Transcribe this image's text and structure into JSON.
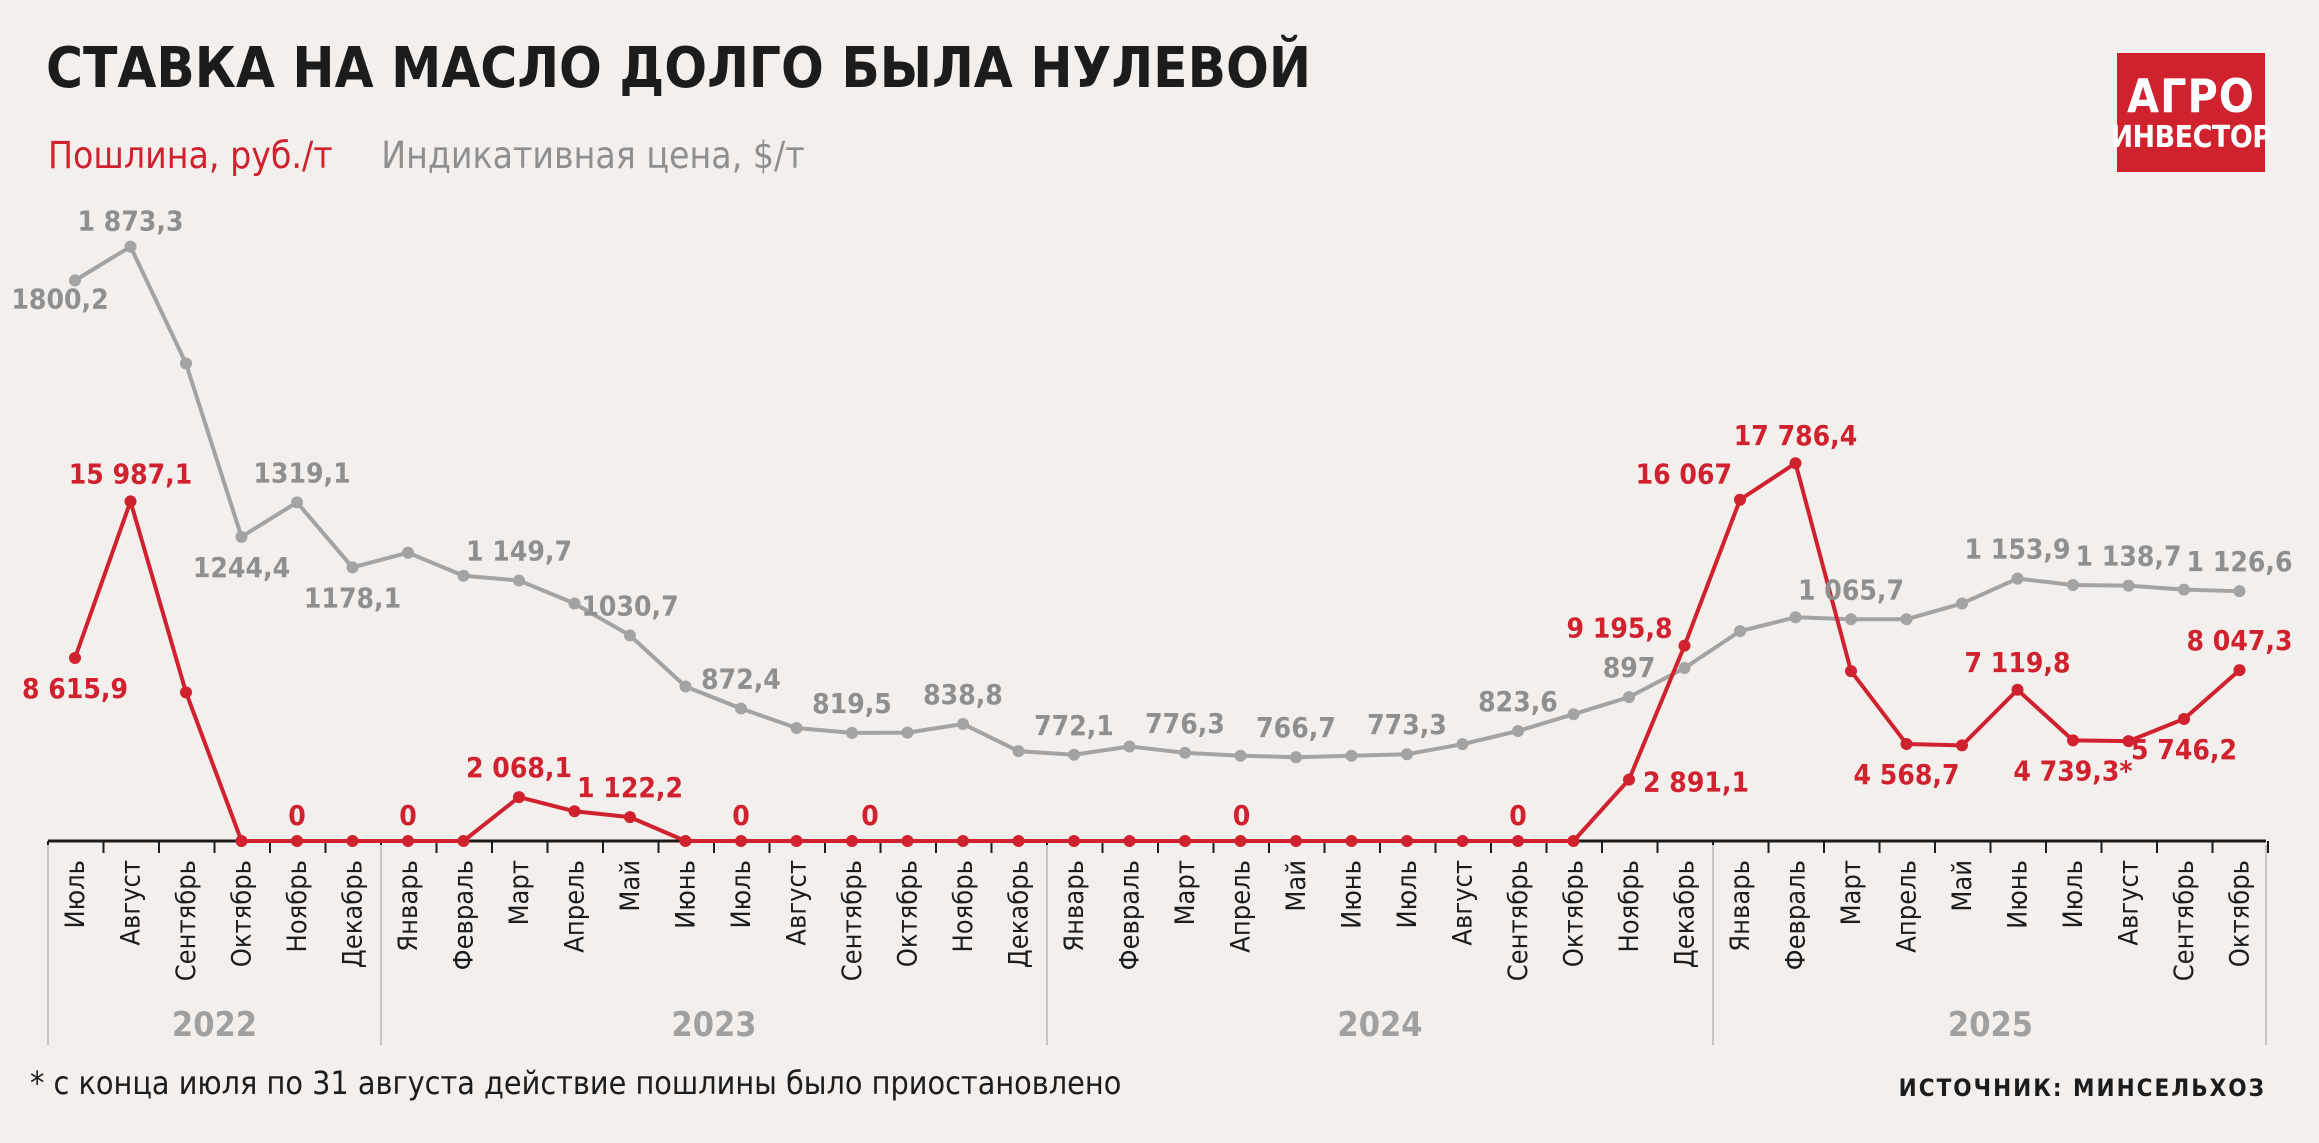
{
  "title": "СТАВКА НА МАСЛО ДОЛГО БЫЛА НУЛЕВОЙ",
  "legend": {
    "duty": "Пошлина, руб./т",
    "price": "Индикативная цена, $/т"
  },
  "logo": {
    "line1": "АГРО",
    "line2": "ИНВЕСТОР"
  },
  "footnote": "* с конца июля по 31 августа действие пошлины было приостановлено",
  "source": "ИСТОЧНИК: МИНСЕЛЬХОЗ",
  "colors": {
    "duty": "#d0222e",
    "price": "#a3a3a3",
    "background": "#f2efed",
    "logo": "#d0222e"
  },
  "chart_data": {
    "type": "line",
    "categories": [
      "Июль",
      "Август",
      "Сентябрь",
      "Октябрь",
      "Ноябрь",
      "Декабрь",
      "Январь",
      "Февраль",
      "Март",
      "Апрель",
      "Май",
      "Июнь",
      "Июль",
      "Август",
      "Сентябрь",
      "Октябрь",
      "Ноябрь",
      "Декабрь",
      "Январь",
      "Февраль",
      "Март",
      "Апрель",
      "Май",
      "Июнь",
      "Июль",
      "Август",
      "Сентябрь",
      "Октябрь",
      "Ноябрь",
      "Декабрь",
      "Январь",
      "Февраль",
      "Март",
      "Апрель",
      "Май",
      "Июнь",
      "Июль",
      "Август",
      "Сентябрь",
      "Октябрь"
    ],
    "years": [
      {
        "label": "2022",
        "start": 0,
        "end": 5
      },
      {
        "label": "2023",
        "start": 6,
        "end": 17
      },
      {
        "label": "2024",
        "start": 18,
        "end": 29
      },
      {
        "label": "2025",
        "start": 30,
        "end": 39
      }
    ],
    "series": [
      {
        "name": "Пошлина, руб./т",
        "values": [
          8615.9,
          15987.1,
          7000,
          0,
          0,
          0,
          0,
          0,
          2068.1,
          1400,
          1122.2,
          0,
          0,
          0,
          0,
          0,
          0,
          0,
          0,
          0,
          0,
          0,
          0,
          0,
          0,
          0,
          0,
          0,
          2891.1,
          9195.8,
          16067,
          17786.4,
          8000,
          4568.7,
          4500,
          7119.8,
          4739.3,
          4700,
          5746.2,
          8047.3
        ],
        "labels": [
          "8 615,9",
          "15 987,1",
          "",
          "",
          "0",
          "",
          "0",
          "",
          "2 068,1",
          "",
          "1 122,2",
          "",
          "0",
          "",
          "",
          "0",
          "",
          "",
          "",
          "",
          "",
          "0",
          "",
          "",
          "",
          "",
          "0",
          "",
          "2 891,1",
          "9 195,8",
          "16 067",
          "17 786,4",
          "",
          "4 568,7",
          "",
          "7 119,8",
          "4 739,3*",
          "",
          "5 746,2",
          "8 047,3"
        ]
      },
      {
        "name": "Индикативная цена, $/т",
        "values": [
          1800.2,
          1873.3,
          1620,
          1244.4,
          1319.1,
          1178.1,
          1210,
          1160,
          1149.7,
          1100,
          1030.7,
          920,
          872.4,
          830,
          819.5,
          820,
          838.8,
          780,
          772.1,
          790,
          776.3,
          770,
          766.7,
          770,
          773.3,
          795,
          823.6,
          860,
          897,
          960,
          1040,
          1070,
          1065.7,
          1065.7,
          1100,
          1153.9,
          1140,
          1138.7,
          1130,
          1126.6
        ],
        "labels": [
          "1800,2",
          "1 873,3",
          "",
          "1244,4",
          "1319,1",
          "1178,1",
          "",
          "",
          "1 149,7",
          "",
          "1030,7",
          "",
          "872,4",
          "",
          "819,5",
          "",
          "838,8",
          "",
          "772,1",
          "",
          "776,3",
          "",
          "766,7",
          "",
          "773,3",
          "",
          "823,6",
          "",
          "897",
          "",
          "",
          "",
          "1 065,7",
          "",
          "",
          "1 153,9",
          "",
          "1 138,7",
          "",
          "1 126,6"
        ]
      }
    ]
  }
}
